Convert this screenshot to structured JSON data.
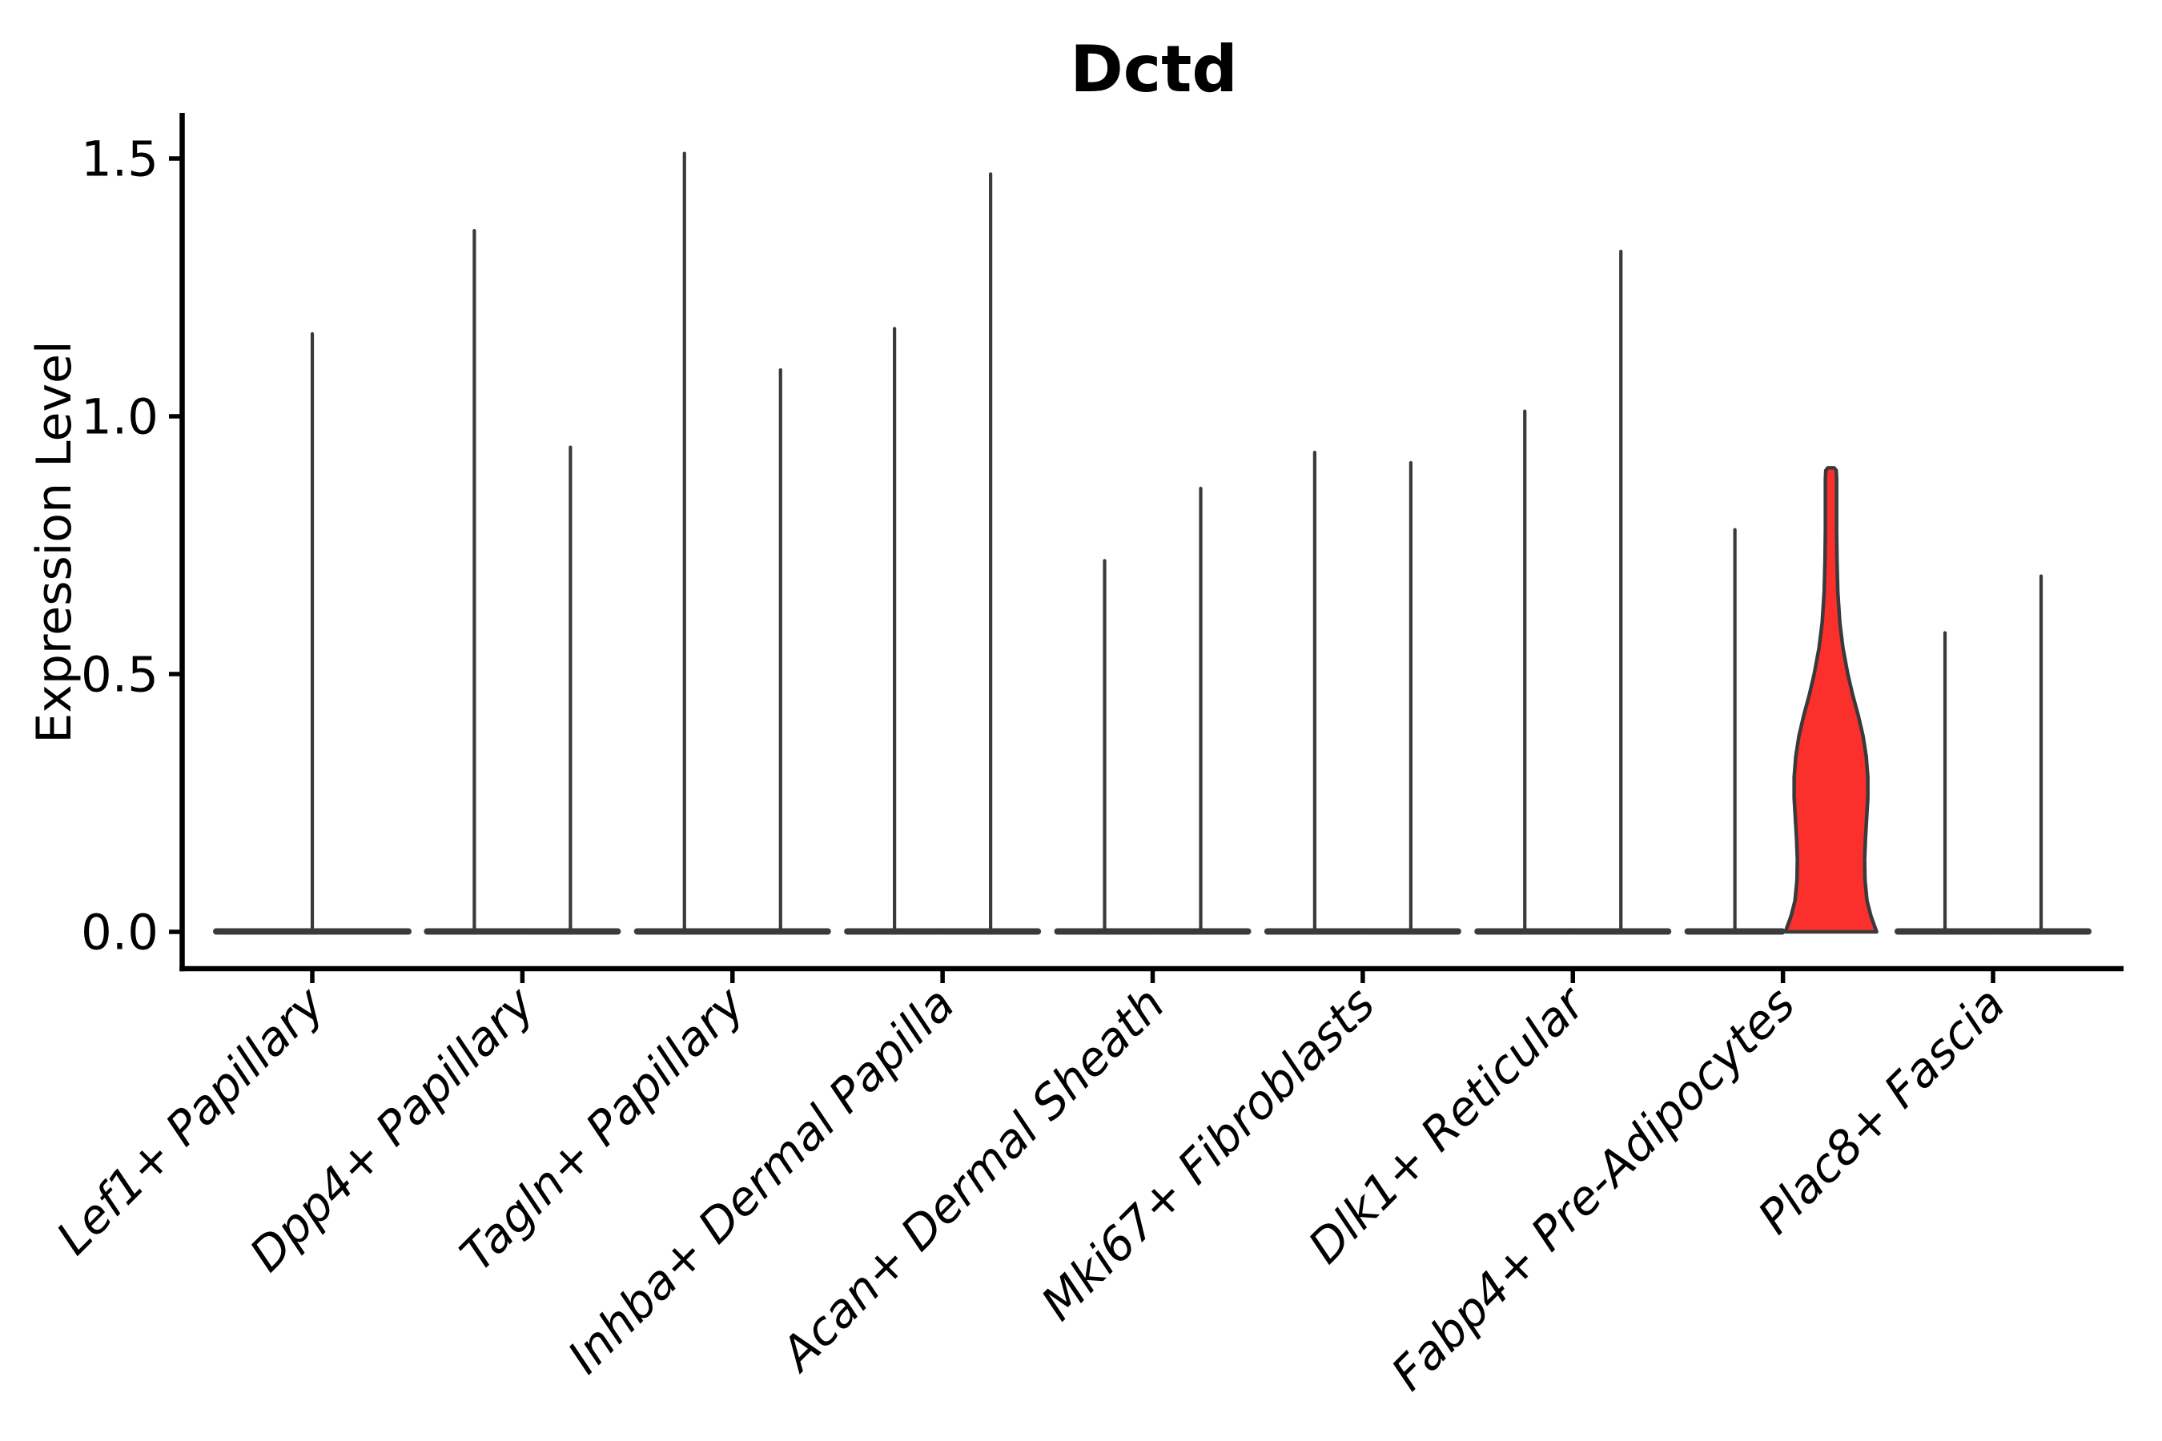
{
  "chart_data": {
    "type": "violin",
    "title": "Dctd",
    "xlabel": "",
    "ylabel": "Expression Level",
    "ylim": [
      -0.07,
      1.59
    ],
    "yticks": [
      0.0,
      0.5,
      1.0,
      1.5
    ],
    "ytick_labels": [
      "0.0",
      "0.5",
      "1.0",
      "1.5"
    ],
    "grid": false,
    "legend": false,
    "categories": [
      "Lef1+ Papillary",
      "Dpp4+ Papillary",
      "Tagln+ Papillary",
      "Inhba+ Dermal Papilla",
      "Acan+ Dermal Sheath",
      "Mki67+ Fibroblasts",
      "Dlk1+ Reticular",
      "Fabp4+ Pre-Adipocytes",
      "Plac8+ Fascia"
    ],
    "description": "Violin plot of Dctd expression; most violins collapse to a wide base at 0 with a thin spike to the max expression value; the second violin of Fabp4+ Pre-Adipocytes is highlighted red with visible density",
    "violins": [
      {
        "category": "Lef1+ Papillary",
        "group_maxes": [
          1.16
        ],
        "single_full_width": true
      },
      {
        "category": "Dpp4+ Papillary",
        "group_maxes": [
          1.36,
          0.94
        ]
      },
      {
        "category": "Tagln+ Papillary",
        "group_maxes": [
          1.51,
          1.09
        ]
      },
      {
        "category": "Inhba+ Dermal Papilla",
        "group_maxes": [
          1.17,
          1.47
        ]
      },
      {
        "category": "Acan+ Dermal Sheath",
        "group_maxes": [
          0.72,
          0.86
        ]
      },
      {
        "category": "Mki67+ Fibroblasts",
        "group_maxes": [
          0.93,
          0.91
        ]
      },
      {
        "category": "Dlk1+ Reticular",
        "group_maxes": [
          1.01,
          1.32
        ]
      },
      {
        "category": "Fabp4+ Pre-Adipocytes",
        "group_maxes": [
          0.78,
          0.9
        ],
        "highlighted_group": 1
      },
      {
        "category": "Plac8+ Fascia",
        "group_maxes": [
          0.58,
          0.69
        ]
      }
    ],
    "highlight_profile": [
      [
        0.9,
        4
      ],
      [
        0.895,
        6.5
      ],
      [
        0.88,
        7
      ],
      [
        0.84,
        7
      ],
      [
        0.78,
        7
      ],
      [
        0.72,
        7.5
      ],
      [
        0.66,
        8.5
      ],
      [
        0.6,
        11
      ],
      [
        0.55,
        15
      ],
      [
        0.5,
        21
      ],
      [
        0.46,
        27
      ],
      [
        0.42,
        34
      ],
      [
        0.38,
        40
      ],
      [
        0.34,
        44
      ],
      [
        0.3,
        46
      ],
      [
        0.26,
        46
      ],
      [
        0.22,
        44.5
      ],
      [
        0.18,
        43
      ],
      [
        0.14,
        42
      ],
      [
        0.1,
        42.5
      ],
      [
        0.06,
        45
      ],
      [
        0.03,
        50
      ],
      [
        0.0,
        57
      ]
    ],
    "colors": {
      "violin_line": "#3A3A3C",
      "highlight_fill": "#FB302C",
      "highlight_edge": "#3A3A3C",
      "axis": "#000000",
      "background": "#FFFFFF"
    }
  }
}
